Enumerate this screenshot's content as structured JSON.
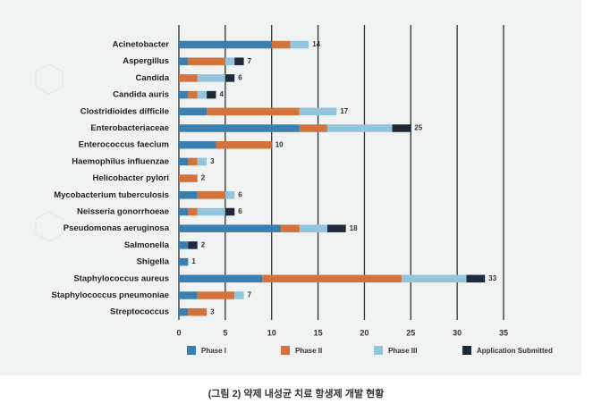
{
  "chart_data": {
    "type": "stacked-barh",
    "categories": [
      "Acinetobacter",
      "Aspergillus",
      "Candida",
      "Candida auris",
      "Clostridioides difficile",
      "Enterobacteriaceae",
      "Enterococcus faecium",
      "Haemophilus influenzae",
      "Helicobacter pylori",
      "Mycobacterium tuberculosis",
      "Neisseria gonorrhoeae",
      "Pseudomonas aeruginosa",
      "Salmonella",
      "Shigella",
      "Staphylococcus aureus",
      "Staphylococcus pneumoniae",
      "Streptococcus"
    ],
    "series": [
      {
        "name": "Phase I",
        "color": "#3a7fb0",
        "values": [
          10,
          1,
          0,
          1,
          3,
          13,
          4,
          1,
          0,
          2,
          1,
          11,
          1,
          1,
          9,
          2,
          1
        ]
      },
      {
        "name": "Phase II",
        "color": "#d3733b",
        "values": [
          2,
          4,
          2,
          1,
          10,
          3,
          6,
          1,
          2,
          3,
          1,
          2,
          0,
          0,
          15,
          4,
          2
        ]
      },
      {
        "name": "Phase III",
        "color": "#92c4de",
        "values": [
          2,
          1,
          3,
          1,
          4,
          7,
          0,
          1,
          0,
          1,
          3,
          3,
          0,
          0,
          7,
          1,
          0
        ]
      },
      {
        "name": "Application Submitted",
        "color": "#1e2a3b",
        "values": [
          0,
          1,
          1,
          1,
          0,
          2,
          0,
          0,
          0,
          0,
          1,
          2,
          1,
          0,
          2,
          0,
          0
        ]
      }
    ],
    "totals": [
      14,
      7,
      6,
      4,
      17,
      25,
      10,
      3,
      2,
      6,
      6,
      18,
      2,
      1,
      33,
      7,
      3
    ],
    "xlim": [
      0,
      35
    ],
    "xticks": [
      0,
      5,
      10,
      15,
      20,
      25,
      30,
      35
    ],
    "grid": true,
    "caption": "(그림 2) 약제 내성균 치료 항생제 개발 현황"
  }
}
